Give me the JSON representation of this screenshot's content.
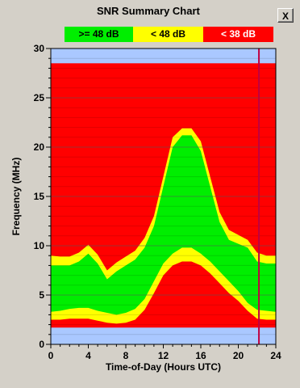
{
  "window": {
    "title": "SNR Summary Chart",
    "close_label": "X"
  },
  "chart_data": {
    "type": "area",
    "title": "SNR Summary Chart",
    "xlabel": "Time-of-Day (Hours UTC)",
    "ylabel": "Frequency (MHz)",
    "xlim": [
      0,
      24
    ],
    "ylim": [
      0,
      30
    ],
    "xticks": [
      "0",
      "4",
      "8",
      "12",
      "16",
      "20",
      "24"
    ],
    "yticks": [
      "0",
      "5",
      "10",
      "15",
      "20",
      "25",
      "30"
    ],
    "grid": true,
    "legend": [
      {
        "label": ">= 48 dB",
        "color": "#00ee00"
      },
      {
        "label": "< 48 dB",
        "color": "#ffff00"
      },
      {
        "label": "< 38 dB",
        "color": "#ff0000"
      }
    ],
    "colors": {
      "band": "#aac8ff",
      "high_snr": "#00ee00",
      "mid_snr": "#ffff00",
      "low_snr": "#ff0000",
      "cursor": "#c00040"
    },
    "lower_band_mhz": [
      0,
      1.7
    ],
    "upper_band_mhz": [
      28.5,
      30
    ],
    "cursor_hour": 22.2,
    "x": [
      0,
      1,
      2,
      3,
      4,
      5,
      6,
      7,
      8,
      9,
      10,
      11,
      12,
      13,
      14,
      15,
      16,
      17,
      18,
      19,
      20,
      21,
      22,
      23,
      24
    ],
    "series": [
      {
        "name": "< 38 dB lower edge",
        "values": [
          2.5,
          2.5,
          2.6,
          2.6,
          2.6,
          2.4,
          2.2,
          2.1,
          2.2,
          2.5,
          3.5,
          5.2,
          7.0,
          8.0,
          8.4,
          8.4,
          8.0,
          7.2,
          6.2,
          5.2,
          4.4,
          3.4,
          2.6,
          2.5,
          2.5
        ]
      },
      {
        "name": "< 48 dB lower edge",
        "values": [
          3.3,
          3.4,
          3.6,
          3.7,
          3.7,
          3.4,
          3.2,
          3.0,
          3.2,
          3.6,
          4.6,
          6.4,
          8.2,
          9.2,
          9.8,
          9.8,
          9.2,
          8.4,
          7.4,
          6.4,
          5.4,
          4.2,
          3.5,
          3.4,
          3.3
        ]
      },
      {
        "name": ">= 48 dB upper edge",
        "values": [
          8.0,
          8.0,
          8.0,
          8.4,
          9.2,
          8.2,
          6.6,
          7.4,
          8.0,
          8.6,
          9.8,
          12.0,
          16.0,
          20.0,
          21.2,
          21.2,
          19.6,
          16.0,
          12.4,
          10.6,
          10.2,
          9.8,
          8.4,
          8.2,
          8.2
        ]
      },
      {
        "name": "< 48 dB upper edge",
        "values": [
          9.0,
          8.9,
          8.9,
          9.3,
          10.1,
          9.1,
          7.5,
          8.3,
          8.9,
          9.5,
          10.8,
          13.0,
          17.0,
          21.0,
          21.9,
          21.9,
          20.6,
          17.0,
          13.4,
          11.6,
          11.1,
          10.6,
          9.3,
          9.0,
          9.0
        ]
      }
    ]
  }
}
